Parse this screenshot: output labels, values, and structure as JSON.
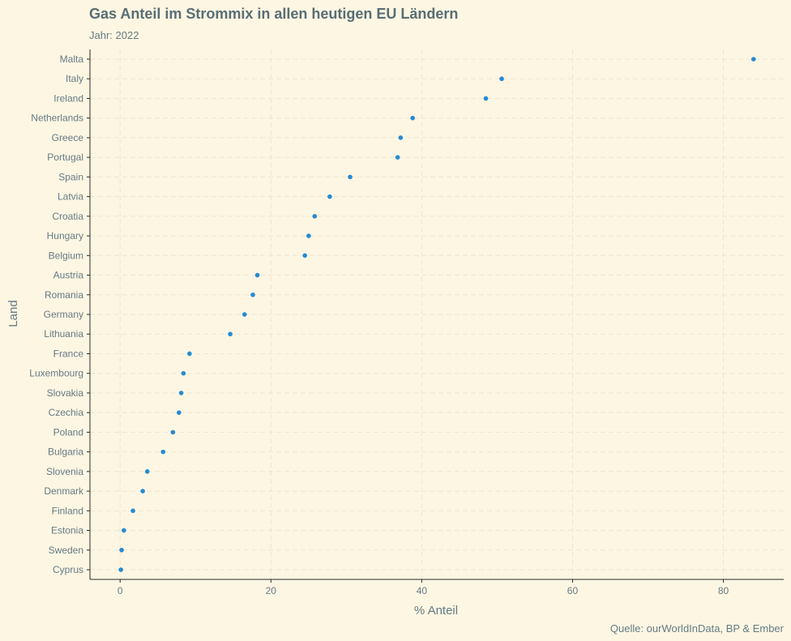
{
  "chart_data": {
    "type": "scatter",
    "title": "Gas Anteil im Strommix in allen heutigen EU Ländern",
    "subtitle": "Jahr: 2022",
    "xlabel": "% Anteil",
    "ylabel": "Land",
    "caption": "Quelle: ourWorldInData, BP & Ember",
    "xlim": [
      -4,
      88
    ],
    "x_ticks": [
      0,
      20,
      40,
      60,
      80
    ],
    "grid": true,
    "point_color": "#268bd2",
    "points": [
      {
        "country": "Malta",
        "value": 84.0
      },
      {
        "country": "Italy",
        "value": 50.6
      },
      {
        "country": "Ireland",
        "value": 48.5
      },
      {
        "country": "Netherlands",
        "value": 38.8
      },
      {
        "country": "Greece",
        "value": 37.2
      },
      {
        "country": "Portugal",
        "value": 36.8
      },
      {
        "country": "Spain",
        "value": 30.5
      },
      {
        "country": "Latvia",
        "value": 27.8
      },
      {
        "country": "Croatia",
        "value": 25.8
      },
      {
        "country": "Hungary",
        "value": 25.0
      },
      {
        "country": "Belgium",
        "value": 24.5
      },
      {
        "country": "Austria",
        "value": 18.2
      },
      {
        "country": "Romania",
        "value": 17.6
      },
      {
        "country": "Germany",
        "value": 16.5
      },
      {
        "country": "Lithuania",
        "value": 14.6
      },
      {
        "country": "France",
        "value": 9.2
      },
      {
        "country": "Luxembourg",
        "value": 8.4
      },
      {
        "country": "Slovakia",
        "value": 8.1
      },
      {
        "country": "Czechia",
        "value": 7.8
      },
      {
        "country": "Poland",
        "value": 7.0
      },
      {
        "country": "Bulgaria",
        "value": 5.7
      },
      {
        "country": "Slovenia",
        "value": 3.6
      },
      {
        "country": "Denmark",
        "value": 3.0
      },
      {
        "country": "Finland",
        "value": 1.7
      },
      {
        "country": "Estonia",
        "value": 0.5
      },
      {
        "country": "Sweden",
        "value": 0.2
      },
      {
        "country": "Cyprus",
        "value": 0.1
      }
    ]
  }
}
